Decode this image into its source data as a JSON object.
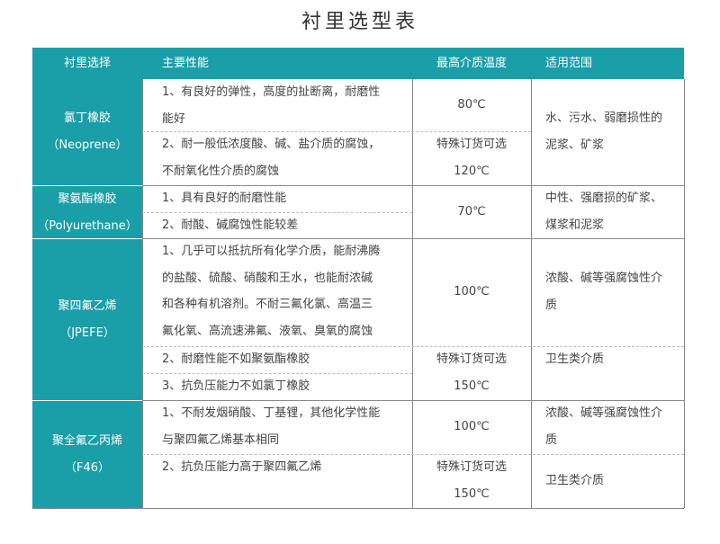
{
  "title": "衬里选型表",
  "colors": {
    "header_bg": "#1a9ea8"
  },
  "headers": [
    "衬里选择",
    "主要性能",
    "最高介质温度",
    "适用范围"
  ],
  "rows": [
    {
      "name": [
        "氯丁橡胶",
        "（Neoprene）"
      ],
      "performance": [
        [
          "1、有良好的弹性，高度的扯断离，耐磨性",
          "能好"
        ],
        [
          "2、耐一般低浓度酸、碱、盐介质的腐蚀，",
          "不耐氧化性介质的腐蚀"
        ]
      ],
      "temperature": [
        [
          "80℃"
        ],
        [
          "特殊订货可选",
          "120℃"
        ]
      ],
      "scope": [
        [
          "水、污水、弱磨损性的",
          "泥浆、矿浆"
        ]
      ]
    },
    {
      "name": [
        "聚氨酯橡胶",
        "（Polyurethane）"
      ],
      "performance": [
        [
          "1、具有良好的耐磨性能"
        ],
        [
          "2、耐酸、碱腐蚀性能较差"
        ]
      ],
      "temperature": [
        [
          "70℃"
        ]
      ],
      "scope": [
        [
          "中性、强磨损的矿浆、",
          "煤浆和泥浆"
        ]
      ]
    },
    {
      "name": [
        "聚四氟乙烯",
        "（JPEFE）"
      ],
      "performance": [
        [
          "1、几乎可以抵抗所有化学介质，能耐沸腾",
          "的盐酸、硫酸、硝酸和王水，也能耐浓碱",
          "和各种有机溶剂。不耐三氟化氯、高温三",
          "氟化氧、高流速沸氟、液氧、臭氧的腐蚀"
        ],
        [
          "2、耐磨性能不如聚氨酯橡胶"
        ],
        [
          "3、抗负压能力不如氯丁橡胶"
        ]
      ],
      "temperature": [
        [
          "100℃"
        ],
        [
          "特殊订货可选",
          "150℃"
        ]
      ],
      "scope": [
        [
          "浓酸、碱等强腐蚀性介",
          "质"
        ],
        [
          "卫生类介质"
        ]
      ]
    },
    {
      "name": [
        "聚全氟乙丙烯",
        "（F46）"
      ],
      "performance": [
        [
          "1、不耐发烟硝酸、丁基锂，其他化学性能",
          "与聚四氟乙烯基本相同"
        ],
        [
          "2、抗负压能力高于聚四氟乙烯"
        ]
      ],
      "temperature": [
        [
          "100℃"
        ],
        [
          "特殊订货可选",
          "150℃"
        ]
      ],
      "scope": [
        [
          "浓酸、碱等强腐蚀性介",
          "质"
        ],
        [
          "卫生类介质"
        ]
      ]
    }
  ]
}
